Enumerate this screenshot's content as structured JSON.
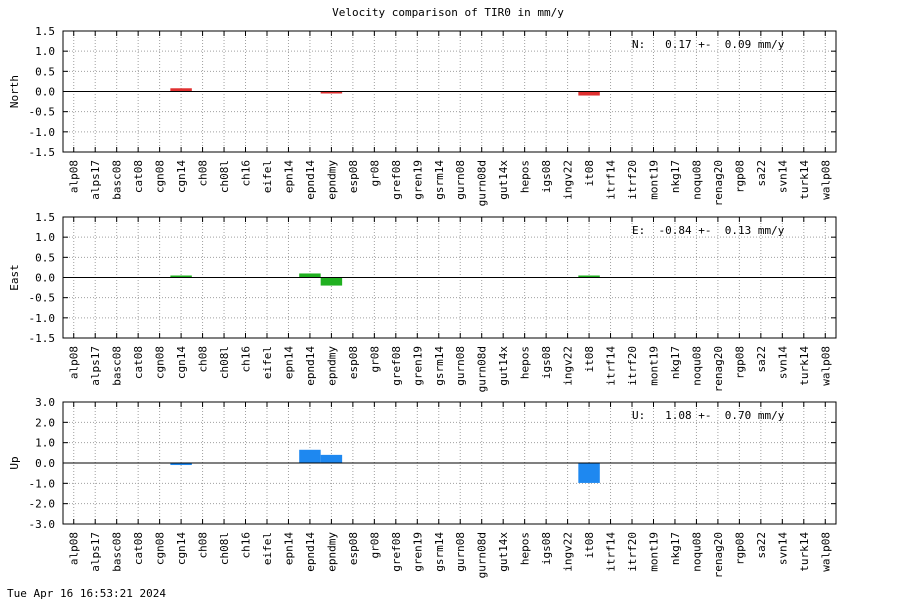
{
  "title": "Velocity comparison of TIR0 in mm/y",
  "timestamp": "Tue Apr 16 16:53:21 2024",
  "chart_data": [
    {
      "type": "bar",
      "ylabel": "North",
      "ylim": [
        -1.5,
        1.5
      ],
      "yticks": [
        -1.5,
        -1.0,
        -0.5,
        0.0,
        0.5,
        1.0,
        1.5
      ],
      "ytick_labels": [
        "-1.5",
        "-1.0",
        "-0.5",
        "0.0",
        "0.5",
        "1.0",
        "1.5"
      ],
      "grid": true,
      "color": "#e03030",
      "annotation": "N:   0.17 +-  0.09 mm/y",
      "categories": [
        "alp08",
        "alps17",
        "basc08",
        "cat08",
        "cgn08",
        "cgn14",
        "ch08",
        "ch08l",
        "ch16",
        "eifel",
        "epn14",
        "epnd14",
        "epndmy",
        "esp08",
        "gr08",
        "gref08",
        "gren19",
        "gsrm14",
        "gurn08",
        "gurn08d",
        "gut14x",
        "hepos",
        "igs08",
        "ingv22",
        "it08",
        "itrf14",
        "itrf20",
        "mont19",
        "nkg17",
        "noqu08",
        "renag20",
        "rgp08",
        "sa22",
        "svn14",
        "turk14",
        "walp08"
      ],
      "values": {
        "cgn14": 0.08,
        "epndmy": -0.02,
        "it08": -0.1
      }
    },
    {
      "type": "bar",
      "ylabel": "East",
      "ylim": [
        -1.5,
        1.5
      ],
      "yticks": [
        -1.5,
        -1.0,
        -0.5,
        0.0,
        0.5,
        1.0,
        1.5
      ],
      "ytick_labels": [
        "-1.5",
        "-1.0",
        "-0.5",
        "0.0",
        "0.5",
        "1.0",
        "1.5"
      ],
      "grid": true,
      "color": "#20b020",
      "annotation": "E:  -0.84 +-  0.13 mm/y",
      "categories": [
        "alp08",
        "alps17",
        "basc08",
        "cat08",
        "cgn08",
        "cgn14",
        "ch08",
        "ch08l",
        "ch16",
        "eifel",
        "epn14",
        "epnd14",
        "epndmy",
        "esp08",
        "gr08",
        "gref08",
        "gren19",
        "gsrm14",
        "gurn08",
        "gurn08d",
        "gut14x",
        "hepos",
        "igs08",
        "ingv22",
        "it08",
        "itrf14",
        "itrf20",
        "mont19",
        "nkg17",
        "noqu08",
        "renag20",
        "rgp08",
        "sa22",
        "svn14",
        "turk14",
        "walp08"
      ],
      "values": {
        "cgn14": 0.02,
        "epnd14": 0.1,
        "epndmy": -0.2,
        "it08": 0.02
      }
    },
    {
      "type": "bar",
      "ylabel": "Up",
      "ylim": [
        -3.0,
        3.0
      ],
      "yticks": [
        -3.0,
        -2.0,
        -1.0,
        0.0,
        1.0,
        2.0,
        3.0
      ],
      "ytick_labels": [
        "-3.0",
        "-2.0",
        "-1.0",
        "0.0",
        "1.0",
        "2.0",
        "3.0"
      ],
      "grid": true,
      "color": "#1e88f0",
      "annotation": "U:   1.08 +-  0.70 mm/y",
      "categories": [
        "alp08",
        "alps17",
        "basc08",
        "cat08",
        "cgn08",
        "cgn14",
        "ch08",
        "ch08l",
        "ch16",
        "eifel",
        "epn14",
        "epnd14",
        "epndmy",
        "esp08",
        "gr08",
        "gref08",
        "gren19",
        "gsrm14",
        "gurn08",
        "gurn08d",
        "gut14x",
        "hepos",
        "igs08",
        "ingv22",
        "it08",
        "itrf14",
        "itrf20",
        "mont19",
        "nkg17",
        "noqu08",
        "renag20",
        "rgp08",
        "sa22",
        "svn14",
        "turk14",
        "walp08"
      ],
      "values": {
        "cgn14": -0.1,
        "epnd14": 0.65,
        "epndmy": 0.4,
        "it08": -0.98
      }
    }
  ]
}
